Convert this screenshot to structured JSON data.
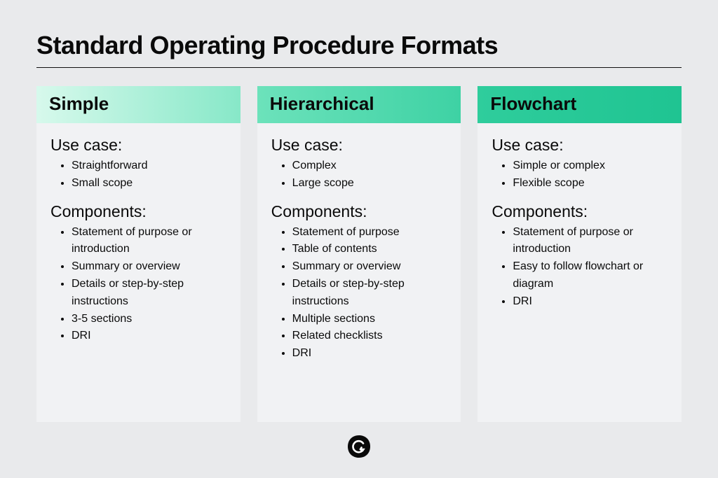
{
  "title": "Standard Operating Procedure Formats",
  "layout": {
    "page_bg": "#e9eaec",
    "card_bg": "#f1f2f4",
    "text_color": "#0a0a0a",
    "title_fontsize": 36,
    "title_weight": 800,
    "header_fontsize": 26,
    "header_weight": 800,
    "section_label_fontsize": 23,
    "list_fontsize": 16,
    "card_gap": 24,
    "card_min_height": 480,
    "title_underline_color": "#111111"
  },
  "section_labels": {
    "use_case": "Use case:",
    "components": "Components:"
  },
  "cards": [
    {
      "name": "Simple",
      "header_bg_from": "#d7f9ec",
      "header_bg_to": "#87e8c8",
      "use_case": [
        "Straightforward",
        "Small scope"
      ],
      "components": [
        "Statement of purpose or introduction",
        "Summary or overview",
        "Details or step-by-step instructions",
        "3-5 sections",
        "DRI"
      ]
    },
    {
      "name": "Hierarchical",
      "header_bg_from": "#6ce2bb",
      "header_bg_to": "#3ed2a4",
      "use_case": [
        "Complex",
        "Large scope"
      ],
      "components": [
        "Statement of purpose",
        "Table of contents",
        "Summary or overview",
        "Details or step-by-step instructions",
        "Multiple sections",
        "Related checklists",
        "DRI"
      ]
    },
    {
      "name": "Flowchart",
      "header_bg_from": "#2fcd9c",
      "header_bg_to": "#1fc492",
      "use_case": [
        "Simple or complex",
        "Flexible scope"
      ],
      "components": [
        "Statement of purpose or introduction",
        "Easy to follow flowchart or diagram",
        "DRI"
      ]
    }
  ],
  "logo": {
    "bg": "#0a0a0a",
    "fg": "#ffffff"
  }
}
